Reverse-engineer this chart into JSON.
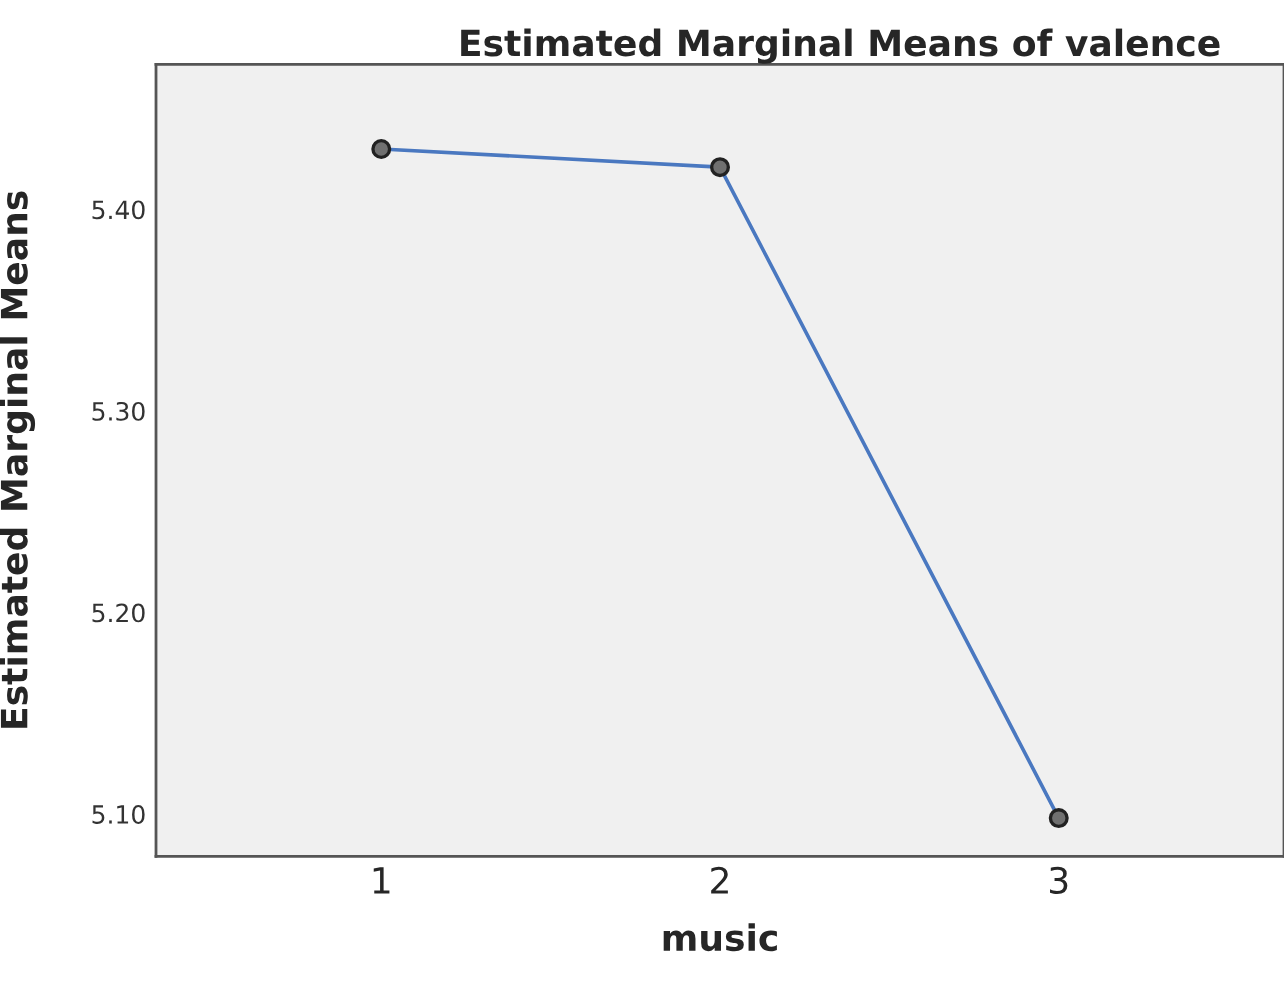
{
  "chart_data": {
    "type": "line",
    "title": "Estimated Marginal Means of valence",
    "xlabel": "music",
    "ylabel": "Estimated Marginal Means",
    "categories": [
      "1",
      "2",
      "3"
    ],
    "series": [
      {
        "color": "#4a78c0",
        "values": [
          5.43,
          5.421,
          5.098
        ]
      }
    ],
    "ylim": [
      5.079,
      5.472
    ],
    "yticks": [
      {
        "value": 5.1,
        "label": "5.10"
      },
      {
        "value": 5.2,
        "label": "5.20"
      },
      {
        "value": 5.3,
        "label": "5.30"
      },
      {
        "value": 5.4,
        "label": "5.40"
      }
    ],
    "marker": "circle",
    "line_style": "solid",
    "grid": false,
    "legend": false
  }
}
